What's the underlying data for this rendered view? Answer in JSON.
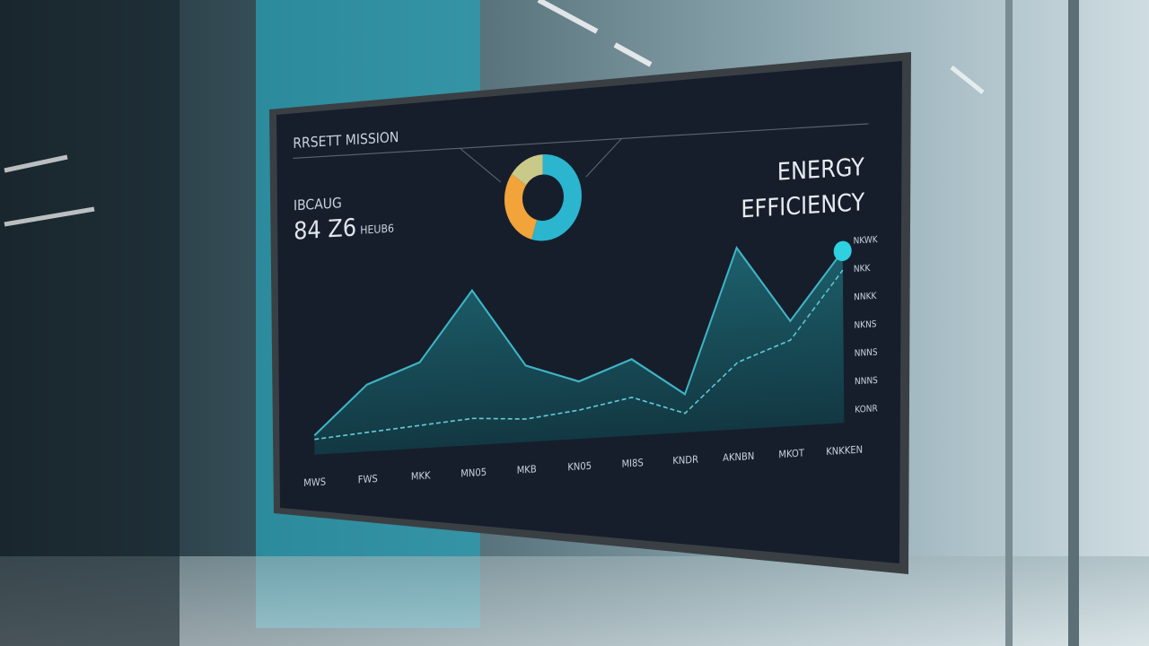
{
  "screen": {
    "title": "RRSETT MISSION",
    "heading": [
      "ENERGY",
      "EFFICIENCY"
    ],
    "stat": {
      "label": "IBCAUG",
      "value": "84 Z6",
      "unit": "HEUB6"
    },
    "donut": {
      "values": [
        55,
        30,
        15
      ],
      "colors": [
        "#2bb5cf",
        "#f2a33a",
        "#c9c98a"
      ]
    },
    "chart": {
      "categories": [
        "MWS",
        "FWS",
        "MKK",
        "MN05",
        "MKB",
        "KN05",
        "MI8S",
        "KNDR",
        "AKNBN",
        "MKOT",
        "KNKKEN"
      ],
      "series": [
        {
          "color": "#3fb4c4",
          "values": [
            10,
            35,
            45,
            81,
            40,
            30,
            40,
            20,
            95,
            55,
            90
          ]
        },
        {
          "color": "#5fc9d6",
          "values": [
            8,
            10,
            12,
            14,
            12,
            15,
            20,
            10,
            35,
            45,
            80
          ]
        }
      ],
      "ylim": [
        0,
        100
      ],
      "right_labels": [
        "NKWK",
        "NKK",
        "NNKK",
        "NKNS",
        "NNNS",
        "NNNS",
        "KONR"
      ]
    }
  }
}
